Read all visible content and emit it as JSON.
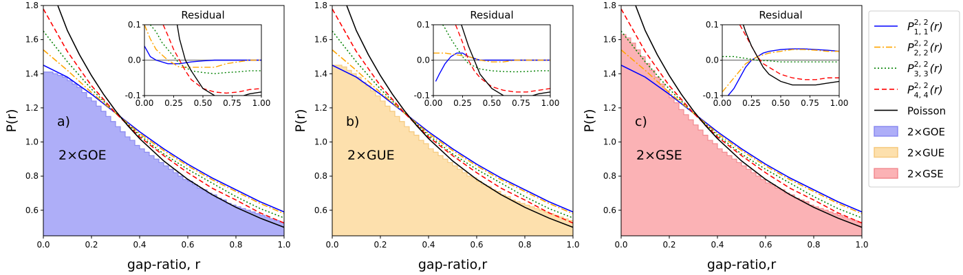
{
  "chart_data": {
    "type": "line+histogram",
    "x_domain": [
      0,
      1
    ],
    "y_domain": [
      0.45,
      1.8
    ],
    "x_ticks": [
      "0.0",
      "0.2",
      "0.4",
      "0.6",
      "0.8",
      "1.0"
    ],
    "x_tick_values": [
      0,
      0.2,
      0.4,
      0.6,
      0.8,
      1.0
    ],
    "y_ticks": [
      "0.6",
      "0.8",
      "1.0",
      "1.2",
      "1.4",
      "1.6",
      "1.8"
    ],
    "y_tick_values": [
      0.6,
      0.8,
      1.0,
      1.2,
      1.4,
      1.6,
      1.8
    ],
    "ylabel": "P(r)",
    "inset": {
      "title": "Residual",
      "x_domain": [
        0,
        1
      ],
      "y_domain": [
        -0.1,
        0.1
      ],
      "x_ticks": [
        "0.00",
        "0.25",
        "0.50",
        "0.75",
        "1.00"
      ],
      "x_tick_values": [
        0,
        0.25,
        0.5,
        0.75,
        1.0
      ],
      "y_ticks": [
        "-0.1",
        "0.0",
        "0.1"
      ],
      "y_tick_values": [
        -0.1,
        0,
        0.1
      ]
    },
    "panels": [
      {
        "label": "a)",
        "ensemble": "2×GOE",
        "xlabel": "gap-ratio, r",
        "hist_color": "#aeaef8",
        "hist_edge": "#8a8af0",
        "hist_values": [
          1.41,
          1.41,
          1.4,
          1.39,
          1.38,
          1.36,
          1.34,
          1.32,
          1.29,
          1.26,
          1.24,
          1.21,
          1.18,
          1.15,
          1.12,
          1.09,
          1.06,
          1.03,
          1.01,
          0.98,
          0.96,
          0.94,
          0.92,
          0.9,
          0.88,
          0.86,
          0.84,
          0.82,
          0.8,
          0.78,
          0.77,
          0.75,
          0.73,
          0.72,
          0.7,
          0.69,
          0.67,
          0.66,
          0.64,
          0.63,
          0.62,
          0.61,
          0.6,
          0.59,
          0.58,
          0.57,
          0.56,
          0.55,
          0.54,
          0.53
        ]
      },
      {
        "label": "b)",
        "ensemble": "2×GUE",
        "xlabel": "gap-ratio,r",
        "hist_color": "#fde0ad",
        "hist_edge": "#f5c97e",
        "hist_values": [
          1.45,
          1.45,
          1.44,
          1.42,
          1.4,
          1.38,
          1.35,
          1.33,
          1.3,
          1.27,
          1.24,
          1.21,
          1.18,
          1.15,
          1.12,
          1.09,
          1.06,
          1.04,
          1.01,
          0.99,
          0.96,
          0.94,
          0.92,
          0.9,
          0.88,
          0.86,
          0.84,
          0.82,
          0.8,
          0.79,
          0.77,
          0.75,
          0.74,
          0.72,
          0.71,
          0.69,
          0.68,
          0.66,
          0.65,
          0.64,
          0.63,
          0.62,
          0.61,
          0.6,
          0.59,
          0.58,
          0.57,
          0.56,
          0.55,
          0.54
        ]
      },
      {
        "label": "c)",
        "ensemble": "2×GSE",
        "xlabel": "gap-ratio,r",
        "hist_color": "#fbb2b5",
        "hist_edge": "#f28a90",
        "hist_values": [
          1.63,
          1.61,
          1.58,
          1.54,
          1.5,
          1.46,
          1.42,
          1.38,
          1.34,
          1.3,
          1.26,
          1.23,
          1.19,
          1.16,
          1.13,
          1.1,
          1.07,
          1.04,
          1.01,
          0.99,
          0.96,
          0.94,
          0.92,
          0.9,
          0.88,
          0.86,
          0.84,
          0.82,
          0.8,
          0.78,
          0.76,
          0.75,
          0.73,
          0.72,
          0.7,
          0.69,
          0.67,
          0.66,
          0.65,
          0.63,
          0.62,
          0.61,
          0.6,
          0.59,
          0.58,
          0.57,
          0.56,
          0.55,
          0.54,
          0.53
        ]
      }
    ],
    "series": [
      {
        "name": "P_{1,1}^{2,2}(r)",
        "color": "#0000ff",
        "dash": "",
        "x": [
          0,
          0.1,
          0.2,
          0.3,
          0.4,
          0.5,
          0.6,
          0.7,
          0.8,
          0.9,
          1.0
        ],
        "y": [
          1.45,
          1.38,
          1.28,
          1.17,
          1.06,
          0.96,
          0.87,
          0.79,
          0.72,
          0.65,
          0.59
        ]
      },
      {
        "name": "P_{2,2}^{2,2}(r)",
        "color": "#ffa500",
        "dash": "9,3,2,3",
        "x": [
          0,
          0.1,
          0.2,
          0.3,
          0.4,
          0.5,
          0.6,
          0.7,
          0.8,
          0.9,
          1.0
        ],
        "y": [
          1.54,
          1.42,
          1.29,
          1.17,
          1.05,
          0.95,
          0.86,
          0.78,
          0.71,
          0.64,
          0.58
        ]
      },
      {
        "name": "P_{3,3}^{2,2}(r)",
        "color": "#008000",
        "dash": "2,3",
        "x": [
          0,
          0.1,
          0.2,
          0.3,
          0.4,
          0.5,
          0.6,
          0.7,
          0.8,
          0.9,
          1.0
        ],
        "y": [
          1.65,
          1.47,
          1.31,
          1.17,
          1.04,
          0.93,
          0.84,
          0.76,
          0.68,
          0.61,
          0.555
        ]
      },
      {
        "name": "P_{4,4}^{2,2}(r)",
        "color": "#ff0000",
        "dash": "7,4",
        "x": [
          0,
          0.1,
          0.2,
          0.3,
          0.4,
          0.5,
          0.6,
          0.7,
          0.8,
          0.9,
          1.0
        ],
        "y": [
          1.78,
          1.53,
          1.33,
          1.17,
          1.03,
          0.92,
          0.82,
          0.73,
          0.66,
          0.585,
          0.525
        ]
      },
      {
        "name": "Poisson",
        "color": "#000000",
        "dash": "",
        "x": [
          0.06,
          0.1,
          0.15,
          0.2,
          0.25,
          0.3,
          0.35,
          0.4,
          0.5,
          0.6,
          0.7,
          0.8,
          0.9,
          1.0
        ],
        "y": [
          1.8,
          1.653,
          1.512,
          1.389,
          1.28,
          1.183,
          1.097,
          1.02,
          0.889,
          0.781,
          0.692,
          0.617,
          0.554,
          0.5
        ]
      }
    ],
    "residuals": [
      [
        {
          "x": [
            0,
            0.05,
            0.1,
            0.2,
            0.3,
            0.4,
            0.5,
            0.6,
            0.7,
            0.8,
            0.9,
            1.0
          ],
          "y": [
            0.04,
            0.01,
            0.0,
            -0.01,
            -0.01,
            -0.005,
            -0.002,
            0.0,
            0.0,
            0.0,
            0.0,
            0.0
          ]
        },
        {
          "x": [
            0,
            0.05,
            0.1,
            0.2,
            0.3,
            0.4,
            0.5,
            0.6,
            0.7,
            0.8,
            0.9,
            1.0
          ],
          "y": [
            0.1,
            0.06,
            0.03,
            0.0,
            -0.02,
            -0.02,
            -0.02,
            -0.02,
            -0.01,
            -0.005,
            0.0,
            0.0
          ]
        },
        {
          "x": [
            0.05,
            0.1,
            0.15,
            0.2,
            0.25,
            0.3,
            0.4,
            0.5,
            0.6,
            0.7,
            0.8,
            0.9,
            1.0
          ],
          "y": [
            0.1,
            0.08,
            0.05,
            0.03,
            0.01,
            -0.01,
            -0.03,
            -0.035,
            -0.038,
            -0.035,
            -0.033,
            -0.03,
            -0.03
          ]
        },
        {
          "x": [
            0.16,
            0.2,
            0.25,
            0.3,
            0.35,
            0.4,
            0.5,
            0.6,
            0.7,
            0.8,
            0.9,
            1.0
          ],
          "y": [
            0.1,
            0.07,
            0.03,
            0.0,
            -0.03,
            -0.055,
            -0.08,
            -0.09,
            -0.093,
            -0.09,
            -0.083,
            -0.08
          ]
        },
        {
          "x": [
            0.28,
            0.3,
            0.35,
            0.4,
            0.5,
            0.6,
            0.7,
            0.8,
            0.9,
            1.0
          ],
          "y": [
            0.1,
            0.06,
            0.0,
            -0.03,
            -0.08,
            -0.1,
            -0.11,
            -0.105,
            -0.095,
            -0.09
          ]
        }
      ],
      [
        {
          "x": [
            0.02,
            0.05,
            0.1,
            0.15,
            0.2,
            0.25,
            0.3,
            0.4,
            0.5,
            0.6,
            0.7,
            0.8,
            0.9,
            1.0
          ],
          "y": [
            -0.06,
            -0.04,
            -0.01,
            0.01,
            0.02,
            0.02,
            0.01,
            0.0,
            0.0,
            0.0,
            0.0,
            0.0,
            0.0,
            0.0
          ]
        },
        {
          "x": [
            0,
            0.1,
            0.2,
            0.3,
            0.4,
            0.5,
            0.6,
            0.7,
            0.8,
            0.9,
            1.0
          ],
          "y": [
            0.02,
            0.02,
            0.015,
            0.01,
            0.0,
            -0.005,
            -0.005,
            0.0,
            0.0,
            0.0,
            0.0
          ]
        },
        {
          "x": [
            0.08,
            0.1,
            0.15,
            0.2,
            0.25,
            0.3,
            0.4,
            0.5,
            0.6,
            0.7,
            0.8,
            0.9,
            1.0
          ],
          "y": [
            0.1,
            0.09,
            0.06,
            0.035,
            0.01,
            -0.01,
            -0.025,
            -0.03,
            -0.032,
            -0.033,
            -0.032,
            -0.03,
            -0.03
          ]
        },
        {
          "x": [
            0.19,
            0.25,
            0.3,
            0.35,
            0.4,
            0.5,
            0.6,
            0.7,
            0.8,
            0.9,
            1.0
          ],
          "y": [
            0.1,
            0.05,
            0.0,
            -0.03,
            -0.05,
            -0.075,
            -0.085,
            -0.09,
            -0.09,
            -0.085,
            -0.08
          ]
        },
        {
          "x": [
            0.24,
            0.3,
            0.35,
            0.4,
            0.5,
            0.6,
            0.7,
            0.8,
            0.9,
            1.0
          ],
          "y": [
            0.1,
            0.04,
            0.0,
            -0.04,
            -0.08,
            -0.1,
            -0.11,
            -0.105,
            -0.095,
            -0.09
          ]
        }
      ],
      [
        {
          "x": [
            0.05,
            0.1,
            0.15,
            0.2,
            0.25,
            0.3,
            0.35,
            0.4,
            0.5,
            0.6,
            0.7,
            0.8,
            0.9,
            1.0
          ],
          "y": [
            -0.1,
            -0.08,
            -0.05,
            -0.02,
            0.0,
            0.01,
            0.02,
            0.025,
            0.03,
            0.032,
            0.032,
            0.03,
            0.028,
            0.025
          ]
        },
        {
          "x": [
            0,
            0.05,
            0.1,
            0.15,
            0.2,
            0.25,
            0.3,
            0.4,
            0.5,
            0.6,
            0.7,
            0.8,
            0.9,
            1.0
          ],
          "y": [
            -0.09,
            -0.07,
            -0.05,
            -0.03,
            -0.01,
            0.0,
            0.01,
            0.02,
            0.025,
            0.03,
            0.03,
            0.028,
            0.025,
            0.025
          ]
        },
        {
          "x": [
            0,
            0.1,
            0.2,
            0.3,
            0.4,
            0.5,
            0.6,
            0.7,
            0.8,
            0.9,
            1.0
          ],
          "y": [
            0.01,
            0.01,
            0.005,
            0.0,
            -0.002,
            -0.005,
            -0.005,
            -0.005,
            -0.005,
            -0.005,
            -0.005
          ]
        },
        {
          "x": [
            0.15,
            0.2,
            0.25,
            0.3,
            0.35,
            0.4,
            0.5,
            0.6,
            0.7,
            0.8,
            0.9,
            1.0
          ],
          "y": [
            0.1,
            0.07,
            0.04,
            0.01,
            -0.01,
            -0.02,
            -0.04,
            -0.05,
            -0.055,
            -0.055,
            -0.05,
            -0.05
          ]
        },
        {
          "x": [
            0.18,
            0.2,
            0.25,
            0.3,
            0.35,
            0.4,
            0.5,
            0.6,
            0.7,
            0.8,
            0.9,
            1.0
          ],
          "y": [
            0.1,
            0.08,
            0.04,
            0.01,
            -0.02,
            -0.04,
            -0.06,
            -0.07,
            -0.07,
            -0.07,
            -0.065,
            -0.06
          ]
        }
      ]
    ],
    "legend": {
      "placement": "right-outside",
      "entries": [
        {
          "text": "P",
          "sup": "2, 2",
          "sub": "1, 1",
          "tail": "(r)",
          "kind": "line",
          "color": "#0000ff",
          "dash": ""
        },
        {
          "text": "P",
          "sup": "2, 2",
          "sub": "2, 2",
          "tail": "(r)",
          "kind": "line",
          "color": "#ffa500",
          "dash": "9,3,2,3"
        },
        {
          "text": "P",
          "sup": "2, 2",
          "sub": "3, 3",
          "tail": "(r)",
          "kind": "line",
          "color": "#008000",
          "dash": "2,3"
        },
        {
          "text": "P",
          "sup": "2, 2",
          "sub": "4, 4",
          "tail": "(r)",
          "kind": "line",
          "color": "#ff0000",
          "dash": "7,4"
        },
        {
          "text": "Poisson",
          "kind": "line",
          "color": "#000000",
          "dash": ""
        },
        {
          "text": "2×GOE",
          "kind": "patch",
          "color": "#aeaef8",
          "edge": "#8a8af0"
        },
        {
          "text": "2×GUE",
          "kind": "patch",
          "color": "#fde0ad",
          "edge": "#f5c97e"
        },
        {
          "text": "2×GSE",
          "kind": "patch",
          "color": "#fbb2b5",
          "edge": "#f28a90"
        }
      ]
    }
  }
}
